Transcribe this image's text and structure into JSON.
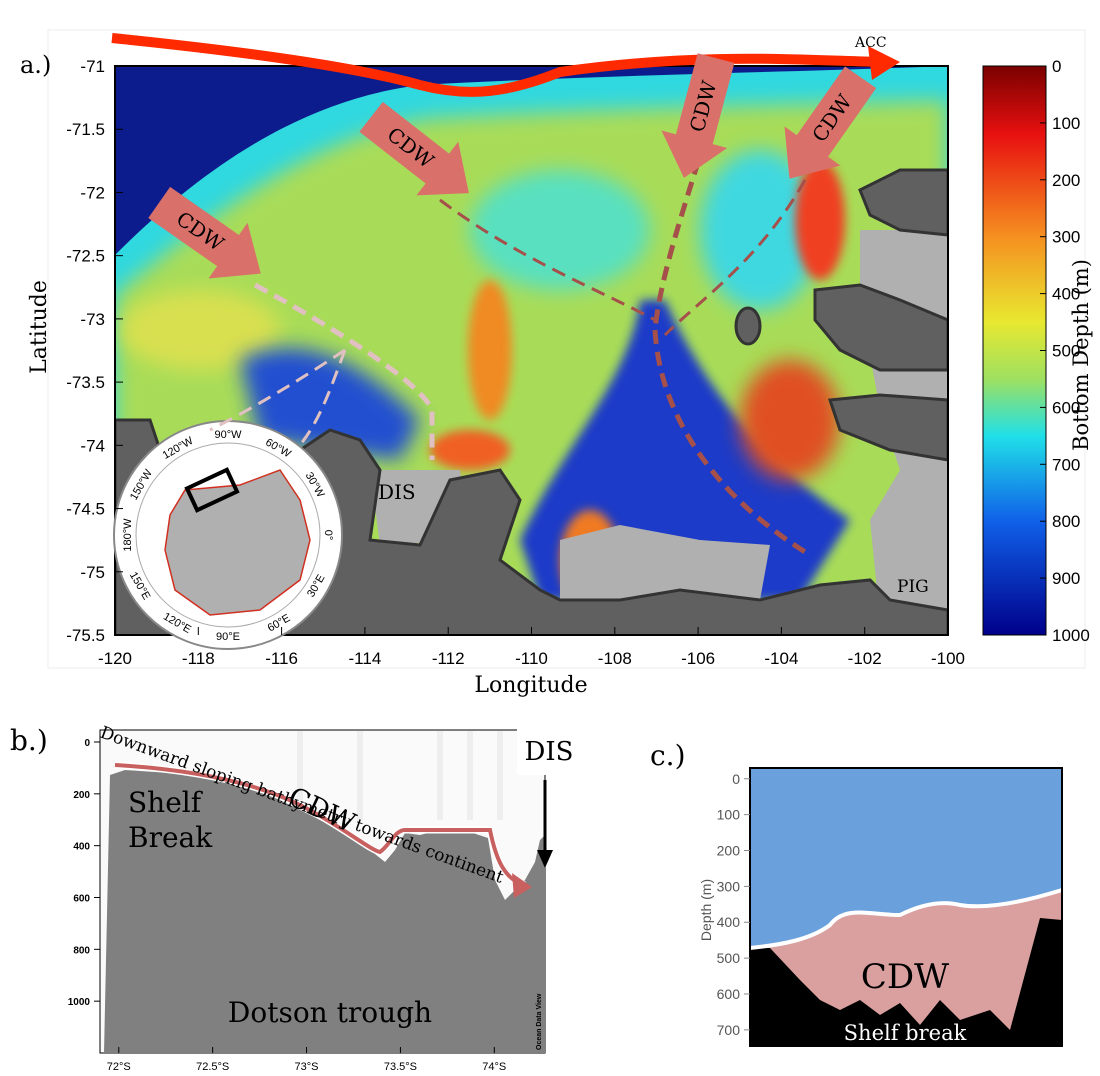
{
  "panel_a": {
    "label": "a.)",
    "x_label": "Longitude",
    "y_label": "Latitude",
    "xlim": [
      -120,
      -100
    ],
    "xticks": [
      -120,
      -118,
      -116,
      -114,
      -112,
      -110,
      -108,
      -106,
      -104,
      -102,
      -100
    ],
    "ylim": [
      -75.5,
      -71
    ],
    "yticks": [
      -71,
      -71.5,
      -72,
      -72.5,
      -73,
      -73.5,
      -74,
      -74.5,
      -75,
      -75.5
    ],
    "colorbar": {
      "label": "Bottom Depth (m)",
      "lim": [
        0,
        1000
      ],
      "ticks": [
        0,
        100,
        200,
        300,
        400,
        500,
        600,
        700,
        800,
        900,
        1000
      ]
    },
    "current_label": "ACC",
    "inflow_labels": [
      "CDW",
      "CDW",
      "CDW",
      "CDW"
    ],
    "place_labels": [
      "DIS",
      "PIG"
    ],
    "inset_labels": [
      "90°W",
      "120°W",
      "60°W",
      "150°W",
      "30°W",
      "180°W",
      "0°",
      "150°E",
      "30°E",
      "120°E",
      "90°E",
      "60°E"
    ]
  },
  "panel_b": {
    "label": "b.)",
    "xlim": [
      -71.9,
      -74.27
    ],
    "xticks": [
      {
        "value": -72,
        "label": "72°S"
      },
      {
        "value": -72.5,
        "label": "72.5°S"
      },
      {
        "value": -73,
        "label": "73°S"
      },
      {
        "value": -73.5,
        "label": "73.5°S"
      },
      {
        "value": -74,
        "label": "74°S"
      }
    ],
    "ylim": [
      0,
      1200
    ],
    "yticks": [
      0,
      200,
      400,
      600,
      800,
      1000
    ],
    "slope_note": "Downward sloping bathymetry towards continent",
    "water_mass": "CDW",
    "shelf": [
      "Shelf",
      "Break"
    ],
    "trough": "Dotson trough",
    "ice_shelf": "DIS",
    "software": "Ocean Data View"
  },
  "panel_c": {
    "label": "c.)",
    "y_label": "Depth (m)",
    "ylim": [
      -30,
      745
    ],
    "yticks": [
      0,
      100,
      200,
      300,
      400,
      500,
      600,
      700
    ],
    "water_mass": "CDW",
    "feature": "Shelf break"
  }
}
